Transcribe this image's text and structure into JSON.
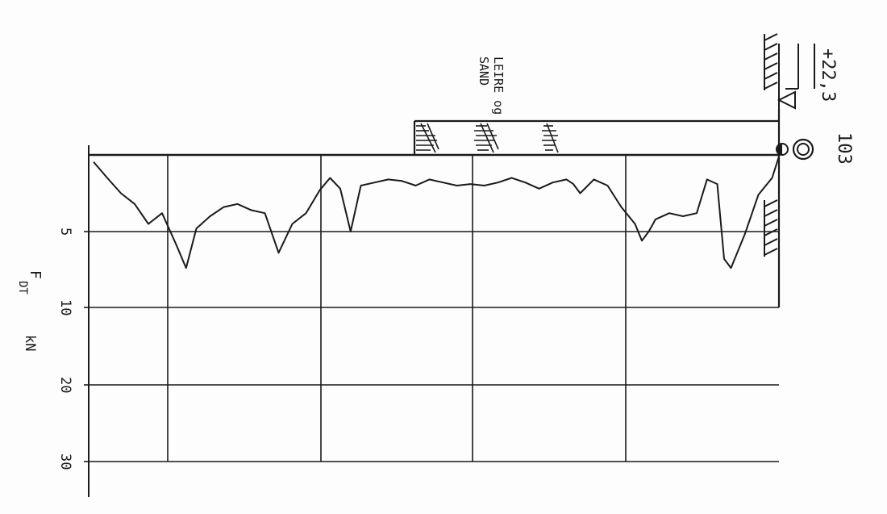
{
  "borehole": {
    "id": "103",
    "elevation": "+22,3"
  },
  "soil_layer": {
    "line1": "LEIRE og",
    "line2": "SAND"
  },
  "axis": {
    "ticks": [
      "5",
      "10",
      "20",
      "30"
    ],
    "force_symbol": "F",
    "force_subscript": "DT",
    "unit": "kN"
  },
  "colors": {
    "ink": "#1a1a1a",
    "paper": "#fdfdfd"
  },
  "chart_data": {
    "type": "line",
    "description_of_axes": "force axis (tick labels 5, 10, 20, 30 kN) and depth axis (no printed depth values)",
    "force_ticks_kN": [
      5,
      10,
      20,
      30
    ],
    "curve_force_vs_depth_fraction": [
      [
        0.45,
        0.0
      ],
      [
        1.5,
        0.02
      ],
      [
        2.5,
        0.04
      ],
      [
        3.2,
        0.06
      ],
      [
        4.5,
        0.08
      ],
      [
        3.8,
        0.1
      ],
      [
        5.8,
        0.12
      ],
      [
        7.4,
        0.135
      ],
      [
        4.8,
        0.15
      ],
      [
        4.0,
        0.17
      ],
      [
        3.4,
        0.19
      ],
      [
        3.2,
        0.21
      ],
      [
        3.6,
        0.23
      ],
      [
        3.8,
        0.25
      ],
      [
        6.4,
        0.27
      ],
      [
        4.5,
        0.29
      ],
      [
        3.8,
        0.31
      ],
      [
        2.3,
        0.33
      ],
      [
        1.5,
        0.345
      ],
      [
        2.2,
        0.36
      ],
      [
        5.0,
        0.375
      ],
      [
        2.0,
        0.39
      ],
      [
        1.8,
        0.41
      ],
      [
        1.6,
        0.43
      ],
      [
        1.7,
        0.45
      ],
      [
        2.0,
        0.47
      ],
      [
        1.6,
        0.49
      ],
      [
        1.8,
        0.51
      ],
      [
        2.0,
        0.53
      ],
      [
        1.9,
        0.55
      ],
      [
        2.0,
        0.57
      ],
      [
        1.8,
        0.59
      ],
      [
        1.5,
        0.61
      ],
      [
        1.8,
        0.63
      ],
      [
        2.2,
        0.65
      ],
      [
        1.8,
        0.67
      ],
      [
        1.6,
        0.69
      ],
      [
        1.9,
        0.7
      ],
      [
        2.5,
        0.71
      ],
      [
        1.6,
        0.73
      ],
      [
        2.0,
        0.75
      ],
      [
        3.4,
        0.77
      ],
      [
        4.5,
        0.79
      ],
      [
        5.6,
        0.8
      ],
      [
        5.0,
        0.81
      ],
      [
        4.2,
        0.82
      ],
      [
        3.8,
        0.84
      ],
      [
        4.0,
        0.86
      ],
      [
        3.8,
        0.88
      ],
      [
        1.6,
        0.895
      ],
      [
        1.9,
        0.91
      ],
      [
        6.8,
        0.92
      ],
      [
        7.4,
        0.93
      ],
      [
        5.2,
        0.95
      ],
      [
        2.6,
        0.97
      ],
      [
        1.5,
        0.99
      ],
      [
        0.1,
        1.0
      ]
    ]
  }
}
